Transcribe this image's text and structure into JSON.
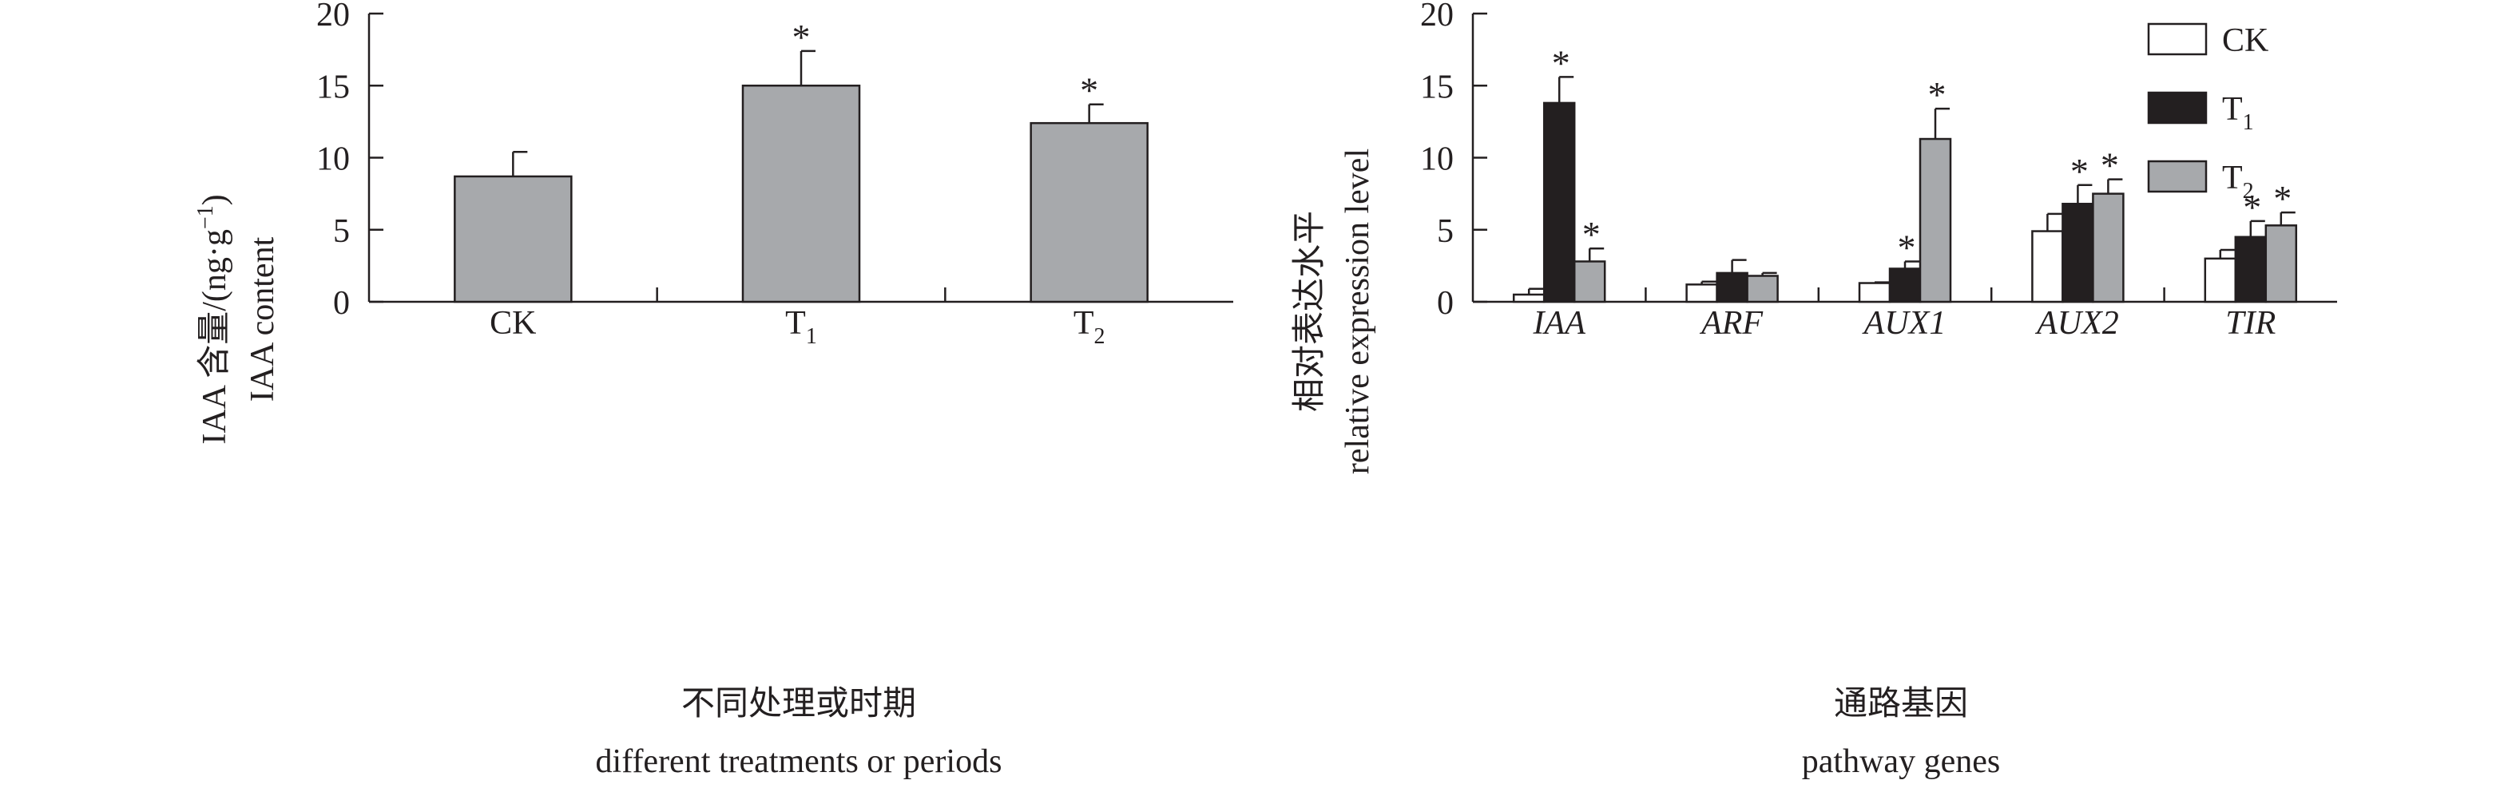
{
  "chart_data": [
    {
      "type": "bar",
      "title": "",
      "ylabel_zh": "IAA 含量/(ng·g",
      "ylabel_zh_sup": "−1",
      "ylabel_zh_end": ")",
      "ylabel_en": "IAA content",
      "xlabel_zh": "不同处理或时期",
      "xlabel_en": "different treatments or periods",
      "ylim": [
        0,
        20
      ],
      "yticks": [
        "0",
        "5",
        "10",
        "15",
        "20"
      ],
      "categories": [
        {
          "label": "CK",
          "sub": ""
        },
        {
          "label": "T",
          "sub": "1"
        },
        {
          "label": "T",
          "sub": "2"
        }
      ],
      "values": [
        8.7,
        15.0,
        12.4
      ],
      "errors": [
        1.7,
        2.4,
        1.3
      ],
      "significance": [
        "",
        "*",
        "*"
      ],
      "bar_color": "#a7a9ac"
    },
    {
      "type": "bar",
      "title": "",
      "ylabel_zh": "相对表达水平",
      "ylabel_en": "relative expression level",
      "xlabel_zh": "通路基因",
      "xlabel_en": "pathway genes",
      "ylim": [
        0,
        20
      ],
      "yticks": [
        "0",
        "5",
        "10",
        "15",
        "20"
      ],
      "categories": [
        "IAA",
        "ARF",
        "AUX1",
        "AUX2",
        "TIR"
      ],
      "legend_position": "top-right",
      "series": [
        {
          "name": "CK",
          "sub": "",
          "color": "#ffffff",
          "values": [
            0.5,
            1.2,
            1.3,
            4.9,
            3.0
          ],
          "errors": [
            0.4,
            0.2,
            0.05,
            1.2,
            0.6
          ],
          "significance": [
            "",
            "",
            "",
            "",
            ""
          ]
        },
        {
          "name": "T",
          "sub": "1",
          "color": "#231f20",
          "values": [
            13.8,
            2.0,
            2.3,
            6.8,
            4.5
          ],
          "errors": [
            1.8,
            0.9,
            0.5,
            1.3,
            1.1
          ],
          "significance": [
            "*",
            "",
            "*",
            "*",
            "*"
          ]
        },
        {
          "name": "T",
          "sub": "2",
          "color": "#a7a9ac",
          "values": [
            2.8,
            1.8,
            11.3,
            7.5,
            5.3
          ],
          "errors": [
            0.9,
            0.2,
            2.1,
            1.0,
            0.9
          ],
          "significance": [
            "*",
            "",
            "*",
            "*",
            "*"
          ]
        }
      ]
    }
  ]
}
